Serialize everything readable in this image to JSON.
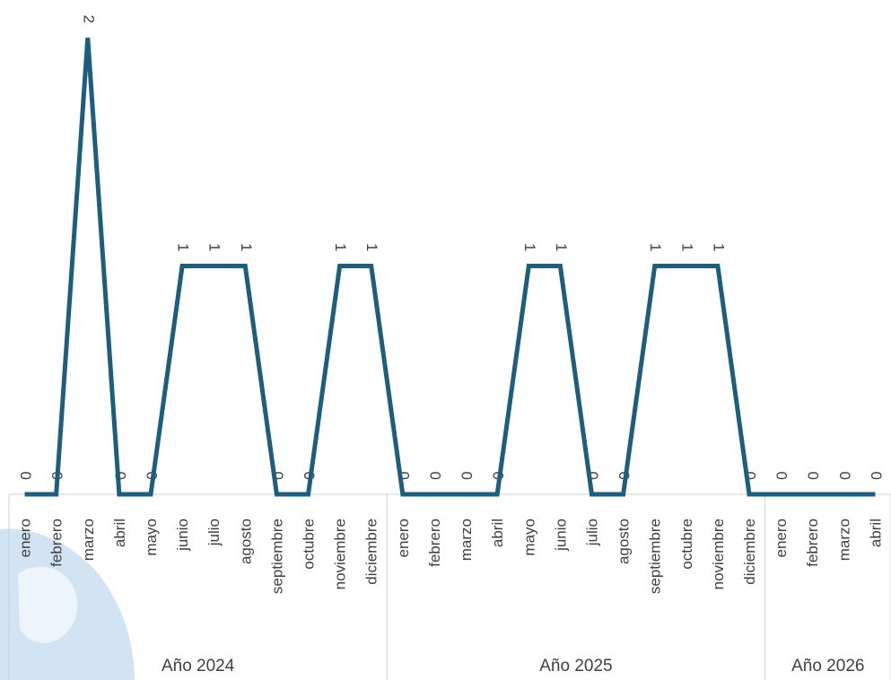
{
  "chart_data": {
    "type": "line",
    "title": "",
    "xlabel": "",
    "ylabel": "",
    "ylim": [
      0,
      2
    ],
    "grid": false,
    "legend": "none",
    "groups": [
      {
        "label": "Año 2024",
        "months": [
          "enero",
          "febrero",
          "marzo",
          "abril",
          "mayo",
          "junio",
          "julio",
          "agosto",
          "septiembre",
          "octubre",
          "noviembre",
          "diciembre"
        ]
      },
      {
        "label": "Año 2025",
        "months": [
          "enero",
          "febrero",
          "marzo",
          "abril",
          "mayo",
          "junio",
          "julio",
          "agosto",
          "septiembre",
          "octubre",
          "noviembre",
          "diciembre"
        ]
      },
      {
        "label": "Año 2026",
        "months": [
          "enero",
          "febrero",
          "marzo",
          "abril"
        ]
      }
    ],
    "series": [
      {
        "color": "#1b5e7e",
        "values": [
          0,
          0,
          2,
          0,
          0,
          1,
          1,
          1,
          0,
          0,
          1,
          1,
          0,
          0,
          0,
          0,
          1,
          1,
          0,
          0,
          1,
          1,
          1,
          0,
          0,
          0,
          0,
          0
        ]
      }
    ]
  }
}
